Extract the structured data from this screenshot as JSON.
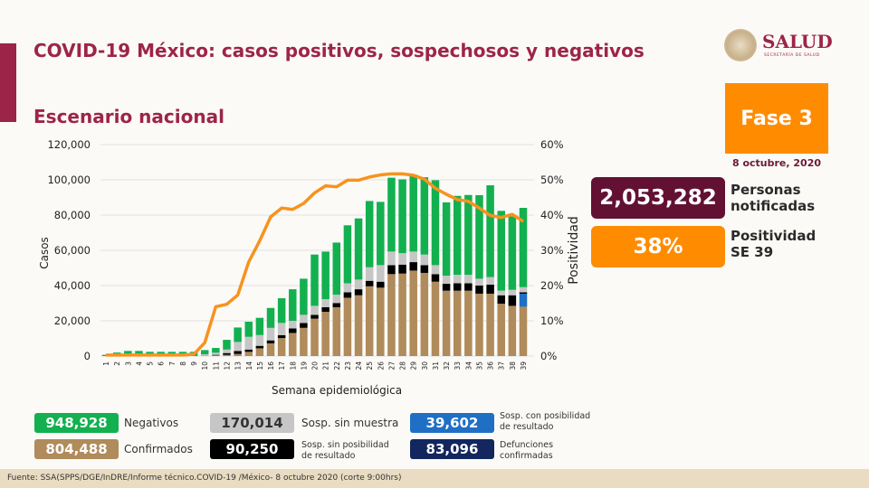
{
  "header": {
    "title": "COVID-19 México: casos positivos, sospechosos y negativos",
    "subtitle": "Escenario nacional"
  },
  "logo": {
    "word": "SALUD",
    "sub": "SECRETARÍA DE SALUD"
  },
  "phase": {
    "label": "Fase 3",
    "date": "8 octubre, 2020"
  },
  "kpis": [
    {
      "value": "2,053,282",
      "label1": "Personas",
      "label2": "notificadas",
      "color": "#621132"
    },
    {
      "value": "38%",
      "label1": "Positividad",
      "label2": "SE 39",
      "color": "#ff8c00"
    }
  ],
  "legend": [
    {
      "value": "948,928",
      "label": "Negativos",
      "color": "#13b050"
    },
    {
      "value": "804,488",
      "label": "Confirmados",
      "color": "#b08b5b"
    },
    {
      "value": "170,014",
      "label": "Sosp. sin muestra",
      "color": "#c6c6c6"
    },
    {
      "value": "90,250",
      "label1": "Sosp. sin posibilidad",
      "label2": "de resultado",
      "color": "#000000"
    },
    {
      "value": "39,602",
      "label1": "Sosp. con posibilidad",
      "label2": "de resultado",
      "color": "#1f6fc5"
    },
    {
      "value": "83,096",
      "label1": "Defunciones",
      "label2": "confirmadas",
      "color": "#13275e"
    }
  ],
  "footer": "Fuente: SSA(SPPS/DGE/InDRE/Informe técnico.COVID-19 /México- 8 octubre 2020 (corte 9:00hrs)",
  "chart_data": {
    "type": "bar",
    "stacked": true,
    "xlabel": "Semana epidemiológica",
    "ylabel": "Casos",
    "y2label": "Positividad",
    "ylim": [
      0,
      120000
    ],
    "y2lim": [
      0,
      60
    ],
    "yticks": [
      "0",
      "20,000",
      "40,000",
      "60,000",
      "80,000",
      "100,000",
      "120,000"
    ],
    "y2ticks": [
      "0%",
      "10%",
      "20%",
      "30%",
      "40%",
      "50%",
      "60%"
    ],
    "grid": true,
    "categories": [
      "1",
      "2",
      "3",
      "4",
      "5",
      "6",
      "7",
      "8",
      "9",
      "10",
      "11",
      "12",
      "13",
      "14",
      "15",
      "16",
      "17",
      "18",
      "19",
      "20",
      "21",
      "22",
      "23",
      "24",
      "25",
      "26",
      "27",
      "28",
      "29",
      "30",
      "31",
      "32",
      "33",
      "34",
      "35",
      "36",
      "37",
      "38",
      "39"
    ],
    "series": [
      {
        "name": "Confirmados",
        "color": "#b08b5b",
        "values": [
          0,
          0,
          0,
          0,
          0,
          0,
          0,
          0,
          0,
          200,
          400,
          700,
          1200,
          2400,
          4400,
          7200,
          10200,
          13100,
          16000,
          21200,
          25100,
          27700,
          33100,
          34500,
          39600,
          38800,
          46500,
          46800,
          48500,
          47200,
          42200,
          37100,
          37100,
          37100,
          35400,
          35400,
          29700,
          28500,
          28000
        ]
      },
      {
        "name": "Sosp. con posibilidad de resultado",
        "color": "#1f6fc5",
        "values": [
          0,
          0,
          0,
          0,
          0,
          0,
          0,
          0,
          0,
          0,
          0,
          0,
          0,
          0,
          0,
          0,
          0,
          0,
          0,
          0,
          0,
          0,
          0,
          0,
          0,
          0,
          0,
          0,
          0,
          0,
          0,
          0,
          0,
          0,
          0,
          0,
          0,
          0,
          7400
        ]
      },
      {
        "name": "Sosp. sin posibilidad de resultado",
        "color": "#000000",
        "values": [
          0,
          0,
          0,
          0,
          0,
          0,
          0,
          0,
          0,
          0,
          300,
          1000,
          1700,
          1300,
          1400,
          1700,
          1700,
          2600,
          2800,
          2200,
          2600,
          2400,
          3100,
          3400,
          3100,
          3400,
          5100,
          5100,
          4800,
          4400,
          4300,
          3900,
          4200,
          4200,
          4600,
          5100,
          4800,
          6000,
          800
        ]
      },
      {
        "name": "Sosp. sin muestra",
        "color": "#c6c6c6",
        "values": [
          0,
          0,
          0,
          0,
          0,
          0,
          0,
          0,
          0,
          800,
          1200,
          2000,
          5100,
          7200,
          6100,
          7100,
          6900,
          4300,
          4600,
          5100,
          4600,
          4700,
          5100,
          5500,
          7700,
          9400,
          7700,
          6500,
          6000,
          6000,
          5100,
          4600,
          4800,
          4800,
          3900,
          4300,
          2600,
          3100,
          2900
        ]
      },
      {
        "name": "Negativos",
        "color": "#13b050",
        "values": [
          700,
          2000,
          2900,
          2900,
          2400,
          2400,
          2400,
          2400,
          2400,
          2400,
          2700,
          5500,
          8200,
          8600,
          9800,
          11300,
          14000,
          17900,
          20500,
          29100,
          27000,
          29600,
          32900,
          34700,
          37600,
          35900,
          41900,
          41900,
          43600,
          43900,
          48200,
          41600,
          44800,
          45300,
          47400,
          52100,
          45300,
          41700,
          45000
        ]
      }
    ],
    "line": {
      "name": "Positividad",
      "color": "#f7931e",
      "values": [
        0.3,
        0.3,
        0.3,
        0.3,
        0.3,
        0.3,
        0.3,
        0.3,
        0.5,
        3.8,
        14,
        14.7,
        17.3,
        26.7,
        32.7,
        39.5,
        42,
        41.6,
        43.3,
        46.3,
        48.3,
        48,
        49.9,
        49.9,
        50.8,
        51.4,
        51.7,
        51.7,
        51.3,
        50.2,
        47.6,
        45.9,
        44.4,
        43.9,
        42,
        39.9,
        39.3,
        40.2,
        38.2
      ]
    }
  }
}
